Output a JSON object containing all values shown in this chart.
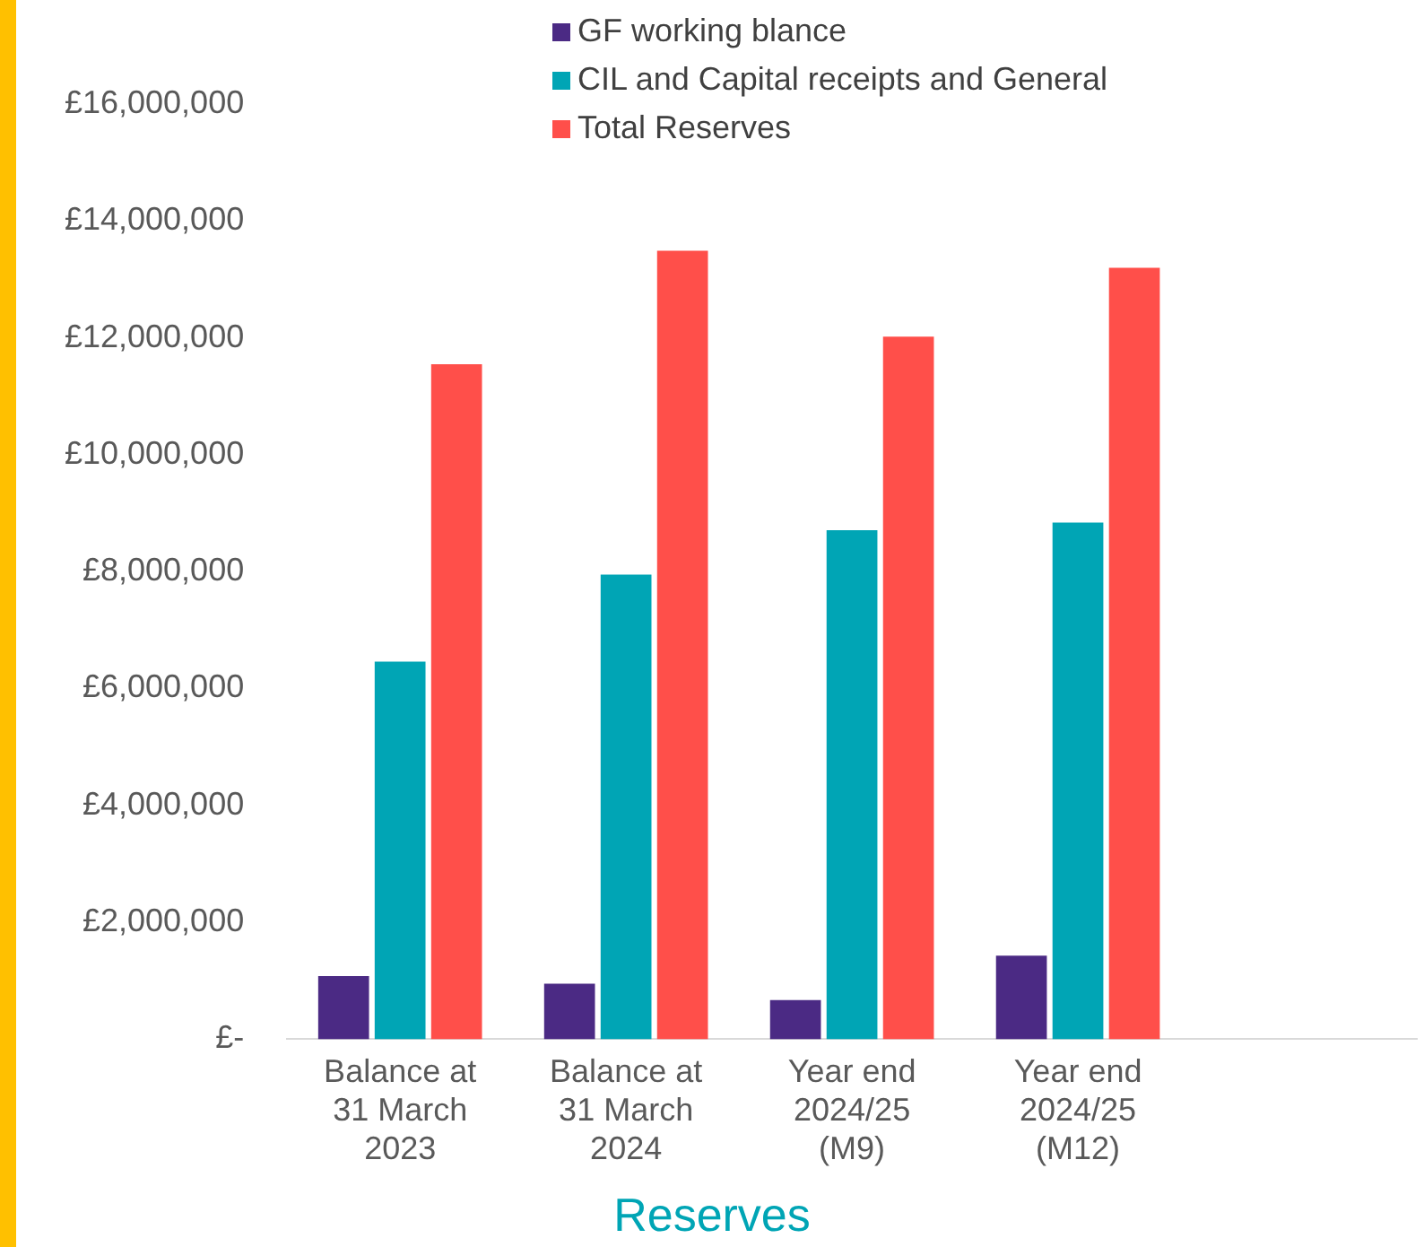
{
  "chart_data": {
    "type": "bar",
    "xlabel": "Reserves",
    "categories": [
      "Balance at 31 March 2023",
      "Balance at 31 March 2024",
      "Year end 2024/25 (M9)",
      "Year end 2024/25 (M12)",
      null
    ],
    "series": [
      {
        "name": "GF working blance",
        "color": "#4b2a84",
        "values": [
          1080000,
          950000,
          670000,
          1430000,
          null
        ]
      },
      {
        "name": "CIL and Capital receipts and General",
        "color": "#00a5b5",
        "values": [
          6460000,
          7950000,
          8710000,
          8840000,
          null
        ]
      },
      {
        "name": "Total Reserves",
        "color": "#ff4f4a",
        "values": [
          11550000,
          13490000,
          12020000,
          13200000,
          null
        ]
      }
    ],
    "ylim": [
      0,
      16000000
    ],
    "yticks": [
      {
        "value": 0,
        "label": "£-"
      },
      {
        "value": 2000000,
        "label": "£2,000,000"
      },
      {
        "value": 4000000,
        "label": "£4,000,000"
      },
      {
        "value": 6000000,
        "label": "£6,000,000"
      },
      {
        "value": 8000000,
        "label": "£8,000,000"
      },
      {
        "value": 10000000,
        "label": "£10,000,000"
      },
      {
        "value": 12000000,
        "label": "£12,000,000"
      },
      {
        "value": 14000000,
        "label": "£14,000,000"
      },
      {
        "value": 16000000,
        "label": "£16,000,000"
      }
    ],
    "grid": false,
    "legend": "top"
  }
}
